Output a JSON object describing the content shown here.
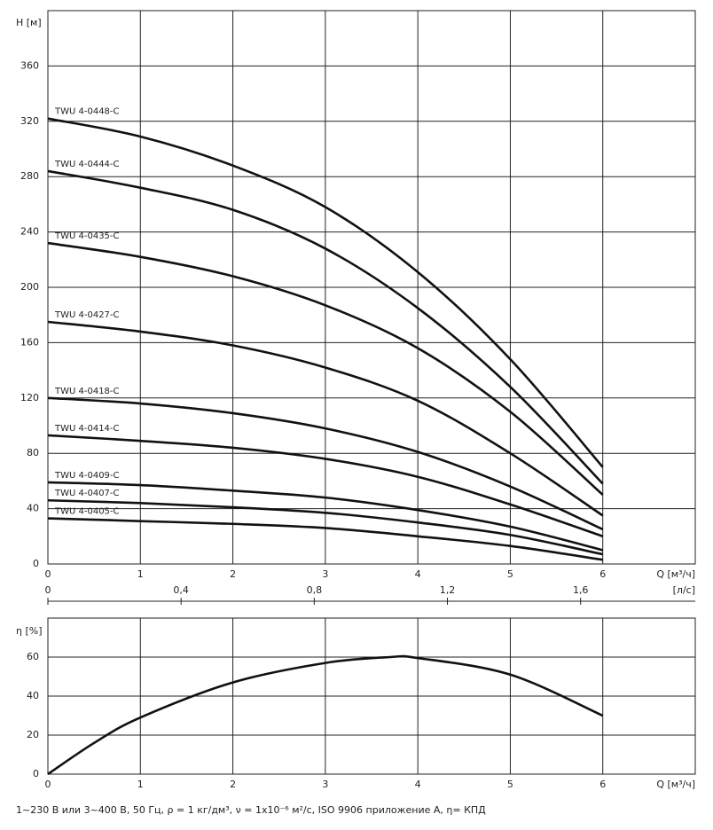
{
  "chart_data": [
    {
      "type": "line",
      "y_label": "H [м]",
      "x_label": "Q [м³/ч]",
      "x": [
        0,
        1,
        2,
        3,
        4,
        5,
        6
      ],
      "xlim": [
        0,
        7
      ],
      "xticks": [
        0,
        1,
        2,
        3,
        4,
        5,
        6
      ],
      "ylim": [
        0,
        400
      ],
      "yticks": [
        0,
        40,
        80,
        120,
        160,
        200,
        240,
        280,
        320,
        360
      ],
      "grid": true,
      "x2_label": "[л/с]",
      "x2lim": [
        0,
        1.9444
      ],
      "x2ticks": [
        0,
        {
          "value": 0.4,
          "label": "0,4"
        },
        {
          "value": 0.8,
          "label": "0,8"
        },
        {
          "value": 1.2,
          "label": "1,2"
        },
        {
          "value": 1.6,
          "label": "1,6"
        }
      ],
      "series": [
        {
          "name": "TWU 4-0448-C",
          "color": "#111111",
          "values": [
            322,
            309,
            288,
            258,
            211,
            148,
            70
          ]
        },
        {
          "name": "TWU 4-0444-C",
          "color": "#111111",
          "values": [
            284,
            272,
            256,
            228,
            185,
            128,
            58
          ]
        },
        {
          "name": "TWU 4-0435-C",
          "color": "#111111",
          "values": [
            232,
            222,
            208,
            187,
            156,
            110,
            50
          ]
        },
        {
          "name": "TWU 4-0427-C",
          "color": "#111111",
          "values": [
            175,
            168,
            158,
            142,
            118,
            80,
            35
          ]
        },
        {
          "name": "TWU 4-0418-C",
          "color": "#111111",
          "values": [
            120,
            116,
            109,
            98,
            81,
            56,
            25
          ]
        },
        {
          "name": "TWU 4-0414-C",
          "color": "#111111",
          "values": [
            93,
            89,
            84,
            76,
            63,
            43,
            20
          ]
        },
        {
          "name": "TWU 4-0409-C",
          "color": "#111111",
          "values": [
            59,
            57,
            53,
            48,
            39,
            27,
            10
          ]
        },
        {
          "name": "TWU 4-0407-C",
          "color": "#111111",
          "values": [
            46,
            44,
            41,
            37,
            30,
            21,
            7
          ]
        },
        {
          "name": "TWU 4-0405-C",
          "color": "#111111",
          "values": [
            33,
            31,
            29,
            26,
            20,
            13,
            3
          ]
        }
      ]
    },
    {
      "type": "line",
      "y_label": "η [%]",
      "x_label": "Q [м³/ч]",
      "x": [
        0,
        0.5,
        1,
        2,
        3,
        3.7,
        4,
        5,
        6
      ],
      "xlim": [
        0,
        7
      ],
      "xticks": [
        0,
        1,
        2,
        3,
        4,
        5,
        6
      ],
      "ylim": [
        0,
        80
      ],
      "yticks": [
        0,
        20,
        40,
        60
      ],
      "grid": true,
      "series": [
        {
          "color": "#111111",
          "values": [
            0,
            16,
            29,
            47,
            57,
            60,
            59.5,
            51,
            30
          ]
        }
      ]
    }
  ],
  "footnote": "1~230 В или 3~400 В, 50 Гц, ρ = 1 кг/дм³, ν = 1x10⁻⁶ м²/с, ISO 9906 приложение A, η= КПД"
}
